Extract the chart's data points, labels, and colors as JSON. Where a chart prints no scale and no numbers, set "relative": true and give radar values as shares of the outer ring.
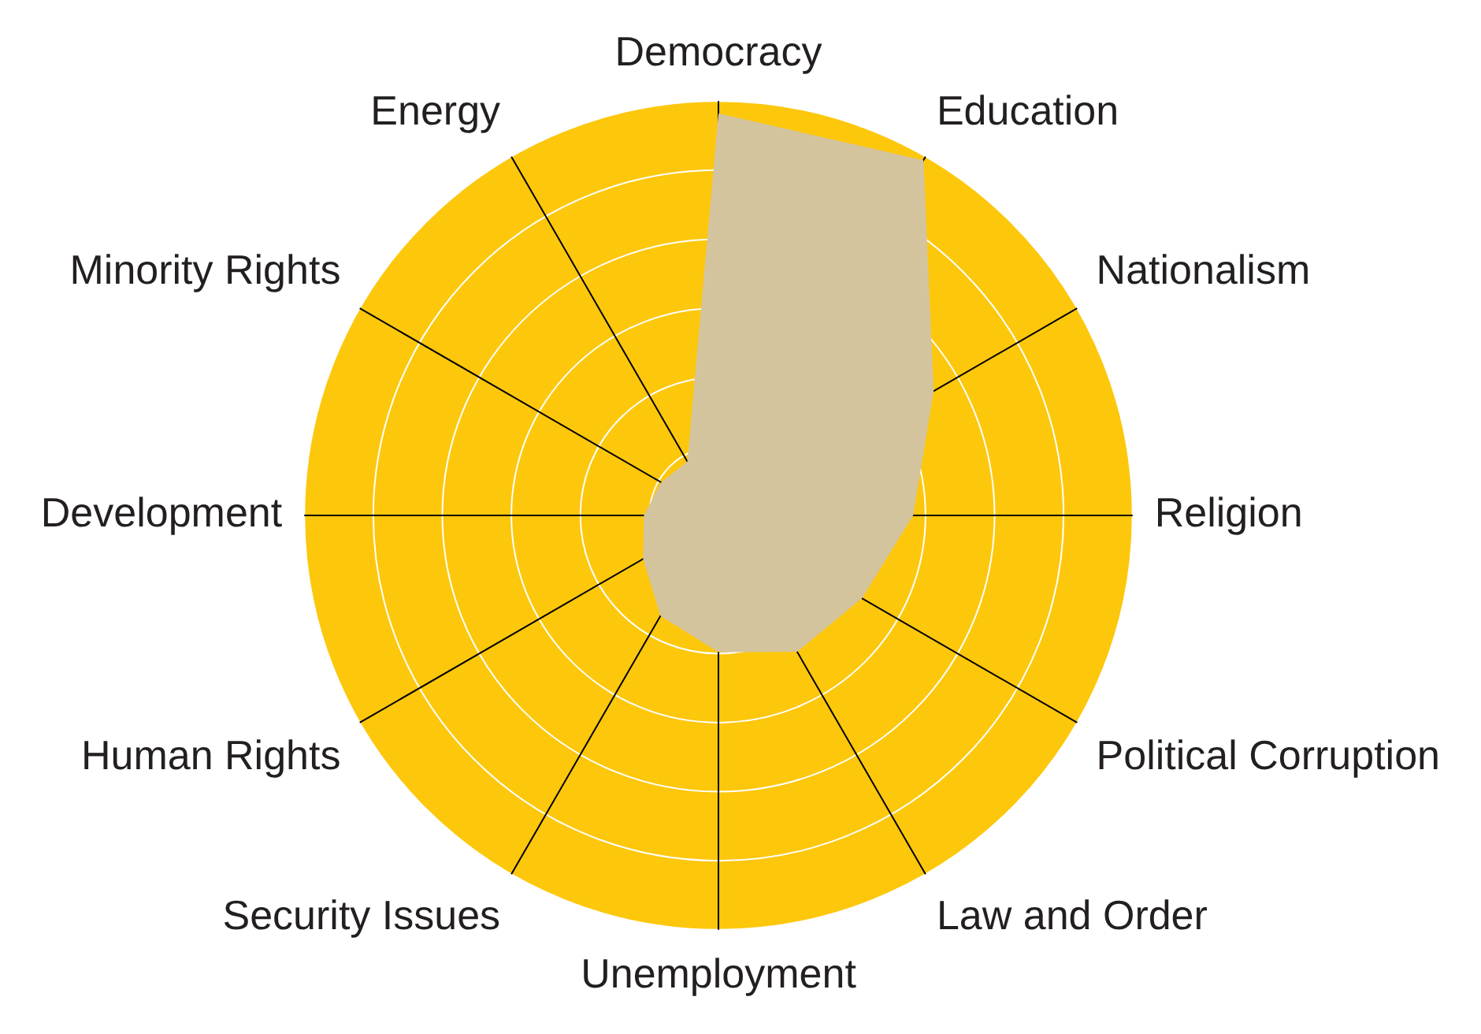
{
  "chart_data": {
    "type": "radar",
    "relative": true,
    "categories": [
      "Democracy",
      "Education",
      "Nationalism",
      "Religion",
      "Political Corruption",
      "Law and Order",
      "Unemployment",
      "Security Issues",
      "Human Rights",
      "Development",
      "Minority Rights",
      "Energy"
    ],
    "series": [
      {
        "color": "#d4c49e",
        "values": [
          0.97,
          0.99,
          0.6,
          0.47,
          0.4,
          0.38,
          0.33,
          0.28,
          0.21,
          0.18,
          0.16,
          0.15
        ]
      }
    ],
    "grid": true,
    "legend": false
  }
}
